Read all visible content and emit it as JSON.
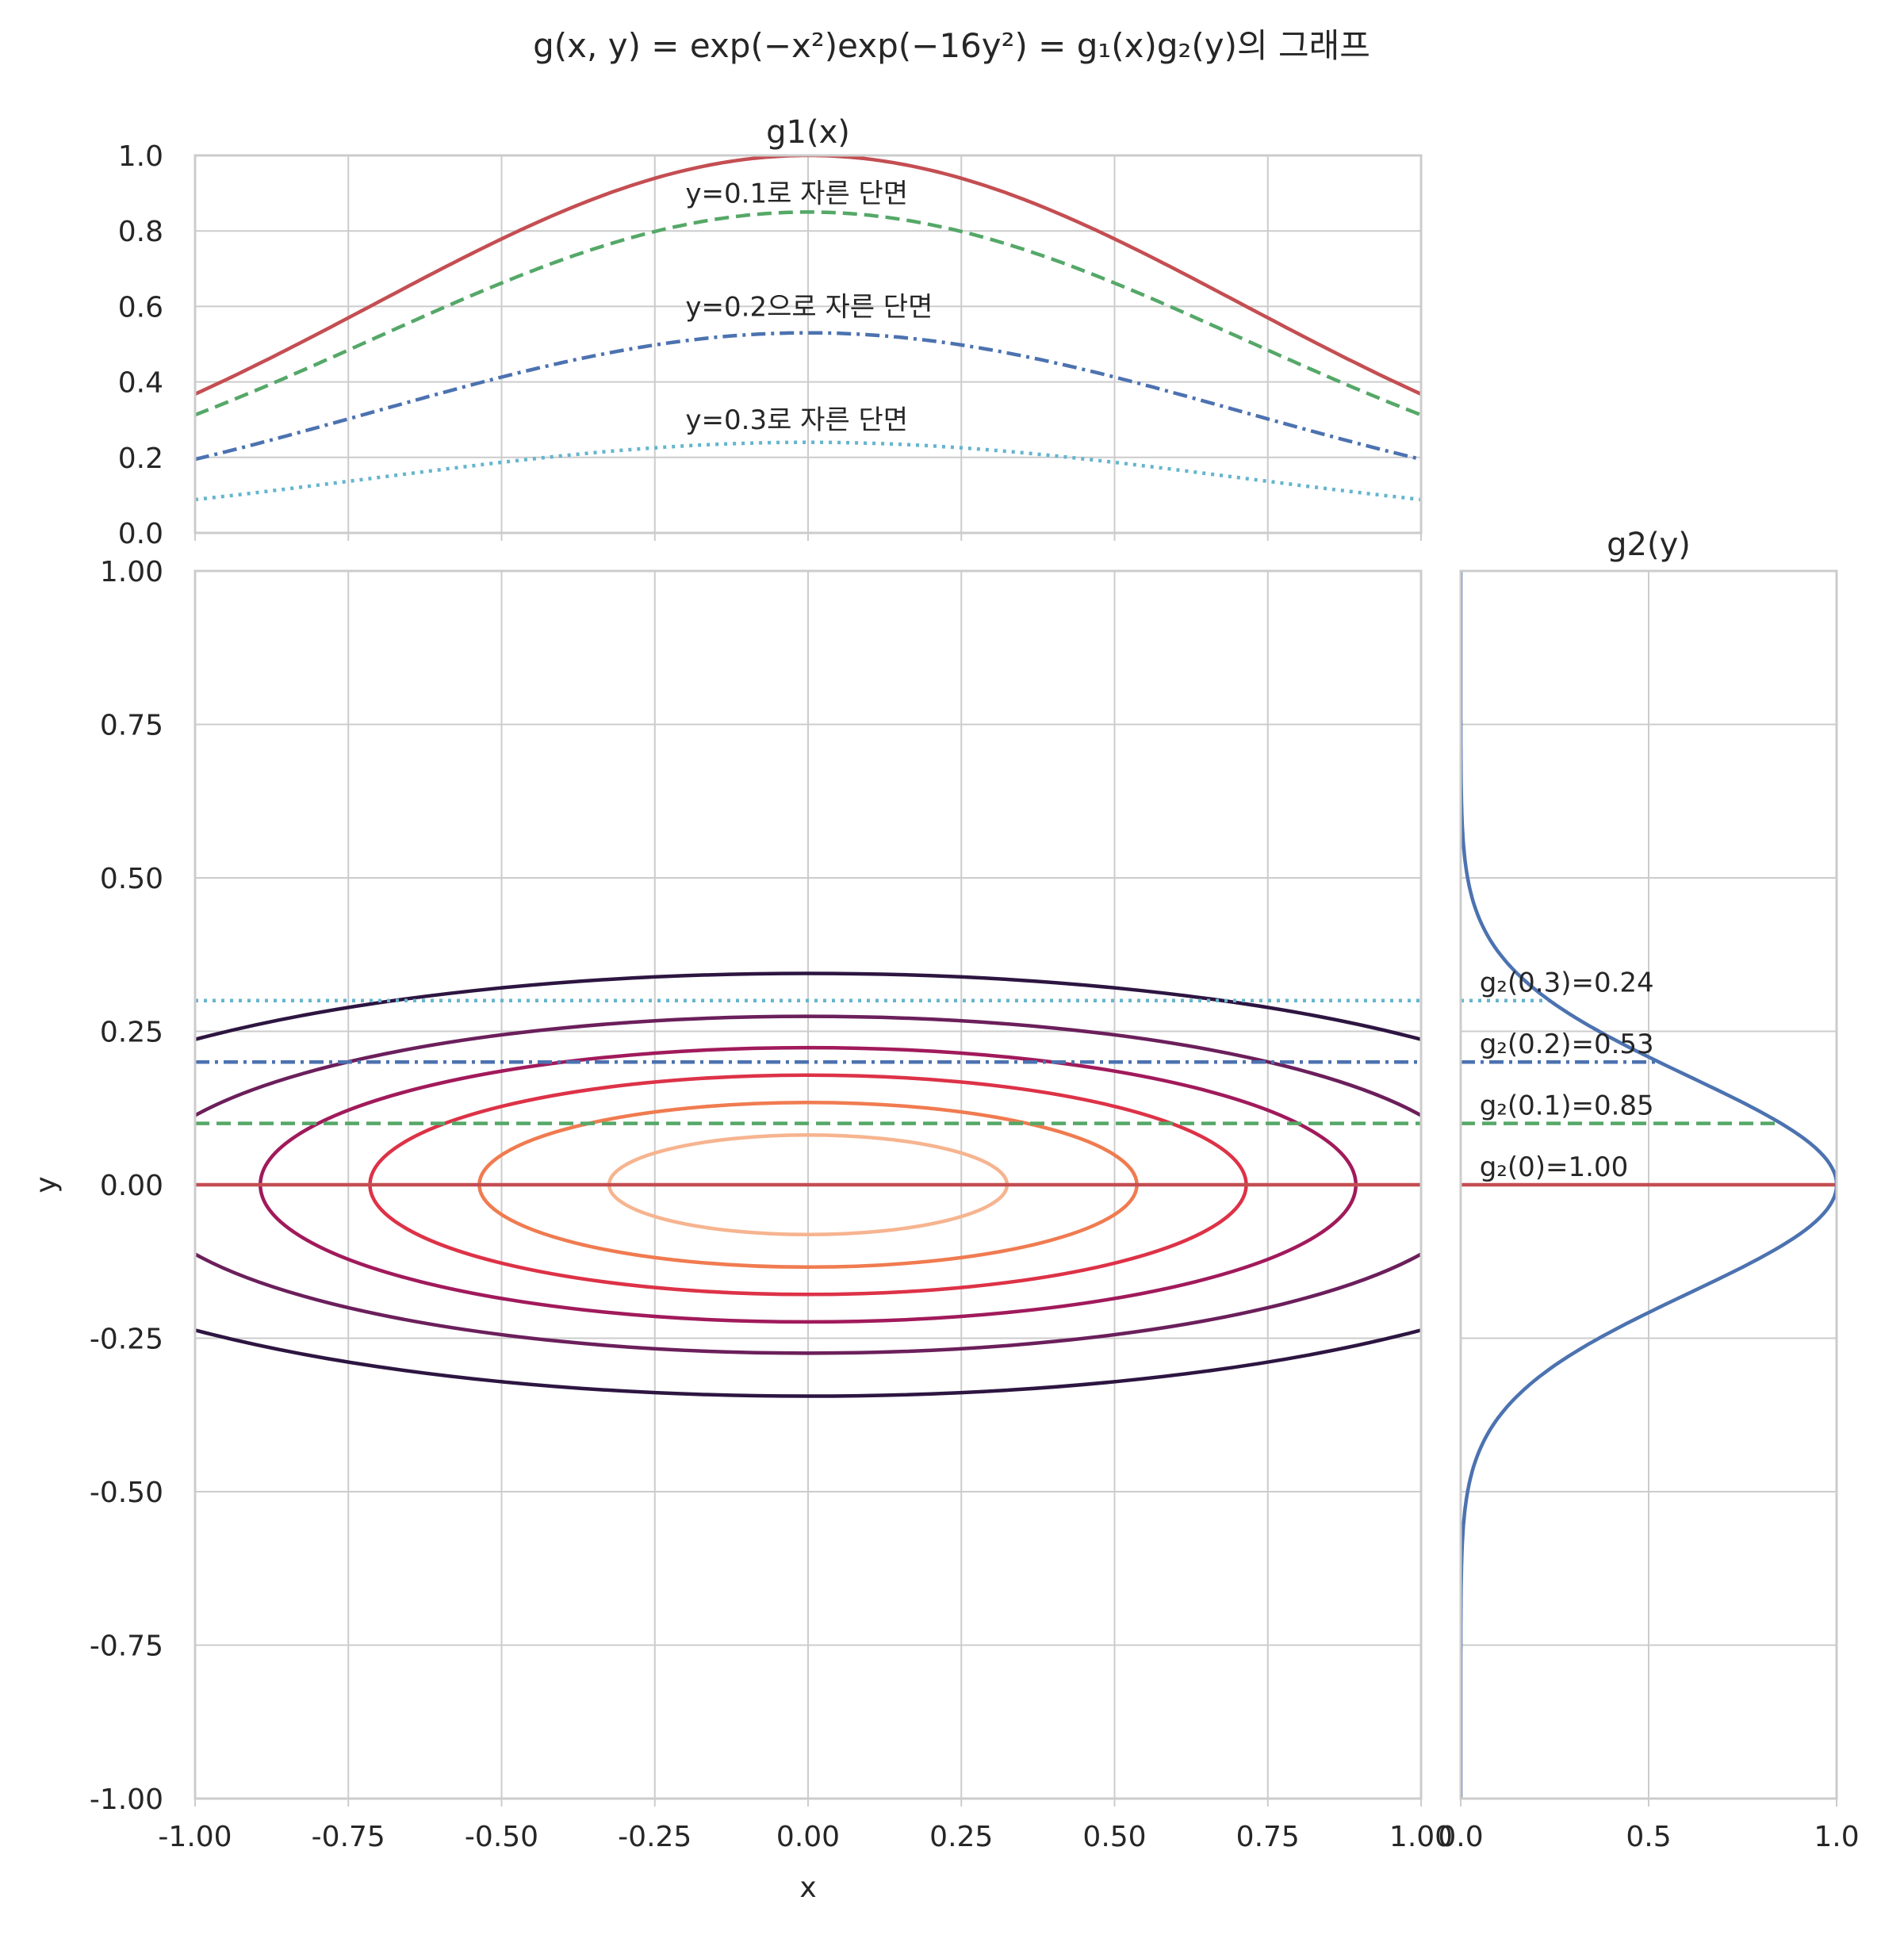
{
  "figure": {
    "suptitle": "g(x, y) = exp(−x²)exp(−16y²) = g₁(x)g₂(y)의 그래프"
  },
  "chart_data": [
    {
      "name": "g1",
      "type": "line",
      "title": "g1(x)",
      "xlim": [
        -1,
        1
      ],
      "ylim": [
        0,
        1
      ],
      "x_ticks": [
        "-1.00",
        "-0.75",
        "-0.50",
        "-0.25",
        "0.00",
        "0.25",
        "0.50",
        "0.75",
        "1.00"
      ],
      "y_ticks": [
        "0.0",
        "0.2",
        "0.4",
        "0.6",
        "0.8",
        "1.0"
      ],
      "grid": true,
      "function": "exp(-x^2) * g2(y0)",
      "series": [
        {
          "y0": 0.0,
          "amplitude": 1.0,
          "color": "#c44e52",
          "style": "solid",
          "values_at_x": {
            "-1": 0.37,
            "0": 1.0,
            "1": 0.37
          }
        },
        {
          "y0": 0.1,
          "amplitude": 0.85,
          "color": "#55a868",
          "style": "dashed",
          "values_at_x": {
            "-1": 0.31,
            "0": 0.85,
            "1": 0.31
          }
        },
        {
          "y0": 0.2,
          "amplitude": 0.53,
          "color": "#4c72b0",
          "style": "dashdot",
          "values_at_x": {
            "-1": 0.19,
            "0": 0.53,
            "1": 0.19
          }
        },
        {
          "y0": 0.3,
          "amplitude": 0.24,
          "color": "#64b5cd",
          "style": "dotted",
          "values_at_x": {
            "-1": 0.09,
            "0": 0.24,
            "1": 0.09
          }
        }
      ],
      "annotations": [
        {
          "text": "y=0.1로 자른 단면",
          "x": -0.2,
          "y": 0.9
        },
        {
          "text": "y=0.2으로 자른 단면",
          "x": -0.2,
          "y": 0.6
        },
        {
          "text": "y=0.3로 자른 단면",
          "x": -0.2,
          "y": 0.3
        }
      ]
    },
    {
      "name": "contour",
      "type": "contour",
      "xlabel": "x",
      "ylabel": "y",
      "xlim": [
        -1,
        1
      ],
      "ylim": [
        -1,
        1
      ],
      "x_ticks": [
        "-1.00",
        "-0.75",
        "-0.50",
        "-0.25",
        "0.00",
        "0.25",
        "0.50",
        "0.75",
        "1.00"
      ],
      "y_ticks": [
        "-1.00",
        "-0.75",
        "-0.50",
        "-0.25",
        "0.00",
        "0.25",
        "0.50",
        "0.75",
        "1.00"
      ],
      "grid": true,
      "function": "exp(-x^2) * exp(-16 y^2)",
      "levels": [
        0.15,
        0.3,
        0.45,
        0.6,
        0.75,
        0.9
      ],
      "level_colors": [
        "#2d1541",
        "#6b1f5b",
        "#a11a5b",
        "#dd3247",
        "#f07b50",
        "#f6b48f"
      ],
      "hlines": [
        {
          "y": 0.0,
          "color": "#c44e52",
          "style": "solid"
        },
        {
          "y": 0.1,
          "color": "#55a868",
          "style": "dashed"
        },
        {
          "y": 0.2,
          "color": "#4c72b0",
          "style": "dashdot"
        },
        {
          "y": 0.3,
          "color": "#64b5cd",
          "style": "dotted"
        }
      ]
    },
    {
      "name": "g2",
      "type": "line",
      "title": "g2(y)",
      "orientation": "horizontal",
      "xlim": [
        0,
        1
      ],
      "ylim": [
        -1,
        1
      ],
      "x_ticks": [
        "0.0",
        "0.5",
        "1.0"
      ],
      "grid": true,
      "function": "exp(-16 y^2)",
      "series_color": "#4c72b0",
      "hlines": [
        {
          "y": 0.0,
          "value": 1.0,
          "color": "#c44e52",
          "style": "solid"
        },
        {
          "y": 0.1,
          "value": 0.85,
          "color": "#55a868",
          "style": "dashed"
        },
        {
          "y": 0.2,
          "value": 0.53,
          "color": "#4c72b0",
          "style": "dashdot"
        },
        {
          "y": 0.3,
          "value": 0.24,
          "color": "#64b5cd",
          "style": "dotted"
        }
      ],
      "annotations": [
        {
          "label": "g₂(0.3)=0.24",
          "x": 0.05,
          "y": 0.33
        },
        {
          "label": "g₂(0.2)=0.53",
          "x": 0.05,
          "y": 0.23
        },
        {
          "label": "g₂(0.1)=0.85",
          "x": 0.05,
          "y": 0.13
        },
        {
          "label": "g₂(0)=1.00",
          "x": 0.05,
          "y": 0.03
        }
      ]
    }
  ]
}
